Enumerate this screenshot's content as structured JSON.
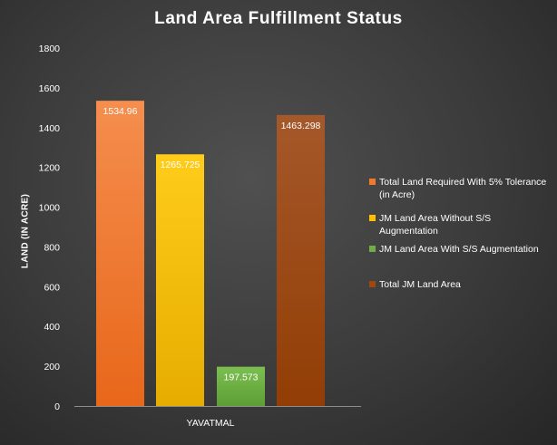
{
  "chart_data": {
    "type": "bar",
    "title": "Land Area Fulfillment Status",
    "ylabel": "LAND (IN ACRE)",
    "categories": [
      "YAVATMAL"
    ],
    "series": [
      {
        "name": "Total Land Required With 5% Tolerance (in Acre)",
        "values": [
          1534.96
        ],
        "label": "1534.96",
        "color": "#f07a2a"
      },
      {
        "name": "JM Land Area Without S/S Augmentation",
        "values": [
          1265.725
        ],
        "label": "1265.725",
        "color": "#ffc000"
      },
      {
        "name": "JM Land Area With S/S Augmentation",
        "values": [
          197.573
        ],
        "label": "197.573",
        "color": "#70ad47"
      },
      {
        "name": "Total JM Land Area",
        "values": [
          1463.298
        ],
        "label": "1463.298",
        "color": "#9e480e"
      }
    ],
    "y_ticks": [
      "0",
      "200",
      "400",
      "600",
      "800",
      "1000",
      "1200",
      "1400",
      "1600",
      "1800"
    ],
    "ylim": [
      0,
      1800
    ],
    "grid": false,
    "legend_position": "right"
  }
}
